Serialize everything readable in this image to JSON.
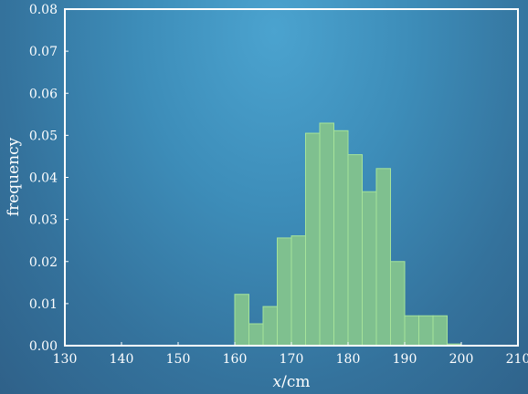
{
  "chart_data": {
    "type": "bar",
    "title": "",
    "xlabel_italic": "x",
    "xlabel_unit": "/cm",
    "ylabel": "frequency",
    "xlim": [
      130,
      210
    ],
    "ylim": [
      0,
      0.08
    ],
    "x_ticks": [
      130,
      140,
      150,
      160,
      170,
      180,
      190,
      200,
      210
    ],
    "y_ticks": [
      "0.00",
      "0.01",
      "0.02",
      "0.03",
      "0.04",
      "0.05",
      "0.06",
      "0.07",
      "0.08"
    ],
    "grid": false,
    "bin_width": 2.5,
    "bins": [
      {
        "x_start": 160.0,
        "x_end": 162.5,
        "value": 0.0122
      },
      {
        "x_start": 162.5,
        "x_end": 165.0,
        "value": 0.0052
      },
      {
        "x_start": 165.0,
        "x_end": 167.5,
        "value": 0.0093
      },
      {
        "x_start": 167.5,
        "x_end": 170.0,
        "value": 0.0256
      },
      {
        "x_start": 170.0,
        "x_end": 172.5,
        "value": 0.0261
      },
      {
        "x_start": 172.5,
        "x_end": 175.0,
        "value": 0.0505
      },
      {
        "x_start": 175.0,
        "x_end": 177.5,
        "value": 0.0529
      },
      {
        "x_start": 177.5,
        "x_end": 180.0,
        "value": 0.0511
      },
      {
        "x_start": 180.0,
        "x_end": 182.5,
        "value": 0.0454
      },
      {
        "x_start": 182.5,
        "x_end": 185.0,
        "value": 0.0366
      },
      {
        "x_start": 185.0,
        "x_end": 187.5,
        "value": 0.0421
      },
      {
        "x_start": 187.5,
        "x_end": 190.0,
        "value": 0.02
      },
      {
        "x_start": 190.0,
        "x_end": 192.5,
        "value": 0.0071
      },
      {
        "x_start": 192.5,
        "x_end": 195.0,
        "value": 0.0071
      },
      {
        "x_start": 195.0,
        "x_end": 197.5,
        "value": 0.0071
      },
      {
        "x_start": 197.5,
        "x_end": 200.0,
        "value": 0.0004
      }
    ],
    "colors": {
      "bar_fill": "#7fc08f",
      "bar_edge": "#a6e39a",
      "axes": "#ffffff",
      "text": "#ffffff"
    }
  }
}
